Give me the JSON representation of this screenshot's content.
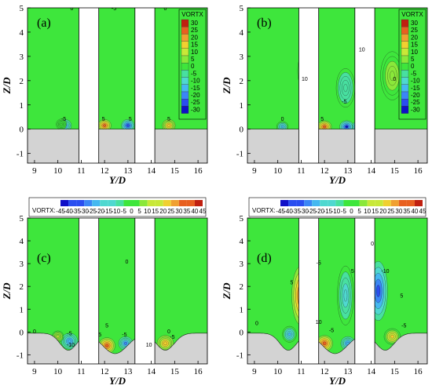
{
  "colors": {
    "field_zero": "#3ee63c",
    "ground": "#d3d3d3",
    "pier": "#ffffff",
    "scale": [
      "#1010c8",
      "#2a4ef0",
      "#3b86f5",
      "#45b8f0",
      "#4fd8d0",
      "#48e0a0",
      "#3ee63c",
      "#8ae83a",
      "#c8e838",
      "#f0d030",
      "#f0a030",
      "#e86020",
      "#c02010"
    ]
  },
  "chart_data": [
    {
      "type": "heatmap",
      "panel_label": "(a)",
      "xlabel": "Y/D",
      "ylabel": "Z/D",
      "xlim": [
        8.7,
        16.4
      ],
      "ylim": [
        -1.4,
        5
      ],
      "xticks": [
        "9",
        "10",
        "11",
        "12",
        "13",
        "14",
        "15",
        "16"
      ],
      "yticks": [
        "-1",
        "0",
        "1",
        "2",
        "3",
        "4",
        "5"
      ],
      "piers": [
        [
          10.9,
          11.75
        ],
        [
          13.3,
          14.15
        ]
      ],
      "bed_profile": "flat",
      "legend": {
        "title": "VORTX",
        "orientation": "vertical",
        "levels": [
          "30",
          "25",
          "20",
          "15",
          "10",
          "5",
          "0",
          "-5",
          "-10",
          "-15",
          "-20",
          "-25",
          "-30"
        ]
      },
      "contour_labels": [
        "-5",
        "0",
        "5",
        "-5",
        "5",
        "0",
        "5"
      ]
    },
    {
      "type": "heatmap",
      "panel_label": "(b)",
      "xlabel": "Y/D",
      "ylabel": "Z/D",
      "xlim": [
        8.7,
        16.4
      ],
      "ylim": [
        -1.4,
        5
      ],
      "xticks": [
        "9",
        "10",
        "11",
        "12",
        "13",
        "14",
        "15",
        "16"
      ],
      "yticks": [
        "-1",
        "0",
        "1",
        "2",
        "3",
        "4",
        "5"
      ],
      "piers": [
        [
          10.9,
          11.75
        ],
        [
          13.3,
          14.15
        ]
      ],
      "bed_profile": "flat",
      "legend": {
        "title": "VORTX",
        "orientation": "vertical",
        "levels": [
          "30",
          "25",
          "20",
          "15",
          "10",
          "5",
          "0",
          "-5",
          "-10",
          "-15",
          "-20",
          "-25",
          "-30"
        ]
      },
      "contour_labels": [
        "0",
        "10",
        "5",
        "-5",
        "10",
        "0",
        "5"
      ]
    },
    {
      "type": "heatmap",
      "panel_label": "(c)",
      "xlabel": "Y/D",
      "ylabel": "Z/D",
      "xlim": [
        8.7,
        16.4
      ],
      "ylim": [
        -1.4,
        5
      ],
      "xticks": [
        "9",
        "10",
        "11",
        "12",
        "13",
        "14",
        "15",
        "16"
      ],
      "yticks": [
        "-1",
        "0",
        "1",
        "2",
        "3",
        "4",
        "5"
      ],
      "piers": [
        [
          10.9,
          11.75
        ],
        [
          13.3,
          14.15
        ]
      ],
      "bed_profile": "scoured",
      "legend": {
        "title": "VORTX:",
        "orientation": "horizontal",
        "levels": [
          "-45",
          "-40",
          "-35",
          "-30",
          "-25",
          "-20",
          "-15",
          "-10",
          "-5",
          "0",
          "5",
          "10",
          "15",
          "20",
          "25",
          "30",
          "35",
          "40",
          "45"
        ]
      },
      "contour_labels": [
        "0",
        "-5",
        "-10",
        "5",
        "5",
        "0",
        "-5",
        "10",
        "0",
        "-5"
      ]
    },
    {
      "type": "heatmap",
      "panel_label": "(d)",
      "xlabel": "Y/D",
      "ylabel": "Z/D",
      "xlim": [
        8.7,
        16.4
      ],
      "ylim": [
        -1.4,
        5
      ],
      "xticks": [
        "9",
        "10",
        "11",
        "12",
        "13",
        "14",
        "15",
        "16"
      ],
      "yticks": [
        "-1",
        "0",
        "1",
        "2",
        "3",
        "4",
        "5"
      ],
      "piers": [
        [
          10.9,
          11.75
        ],
        [
          13.3,
          14.15
        ]
      ],
      "bed_profile": "scoured",
      "legend": {
        "title": "VORTX:",
        "orientation": "horizontal",
        "levels": [
          "-45",
          "-40",
          "-35",
          "-30",
          "-25",
          "-20",
          "-15",
          "-10",
          "-5",
          "0",
          "5",
          "10",
          "15",
          "20",
          "25",
          "30",
          "35",
          "40",
          "45"
        ]
      },
      "contour_labels": [
        "0",
        "5",
        "-5",
        "10",
        "-5",
        "5",
        "-10",
        "0",
        "5",
        "-5"
      ]
    }
  ]
}
